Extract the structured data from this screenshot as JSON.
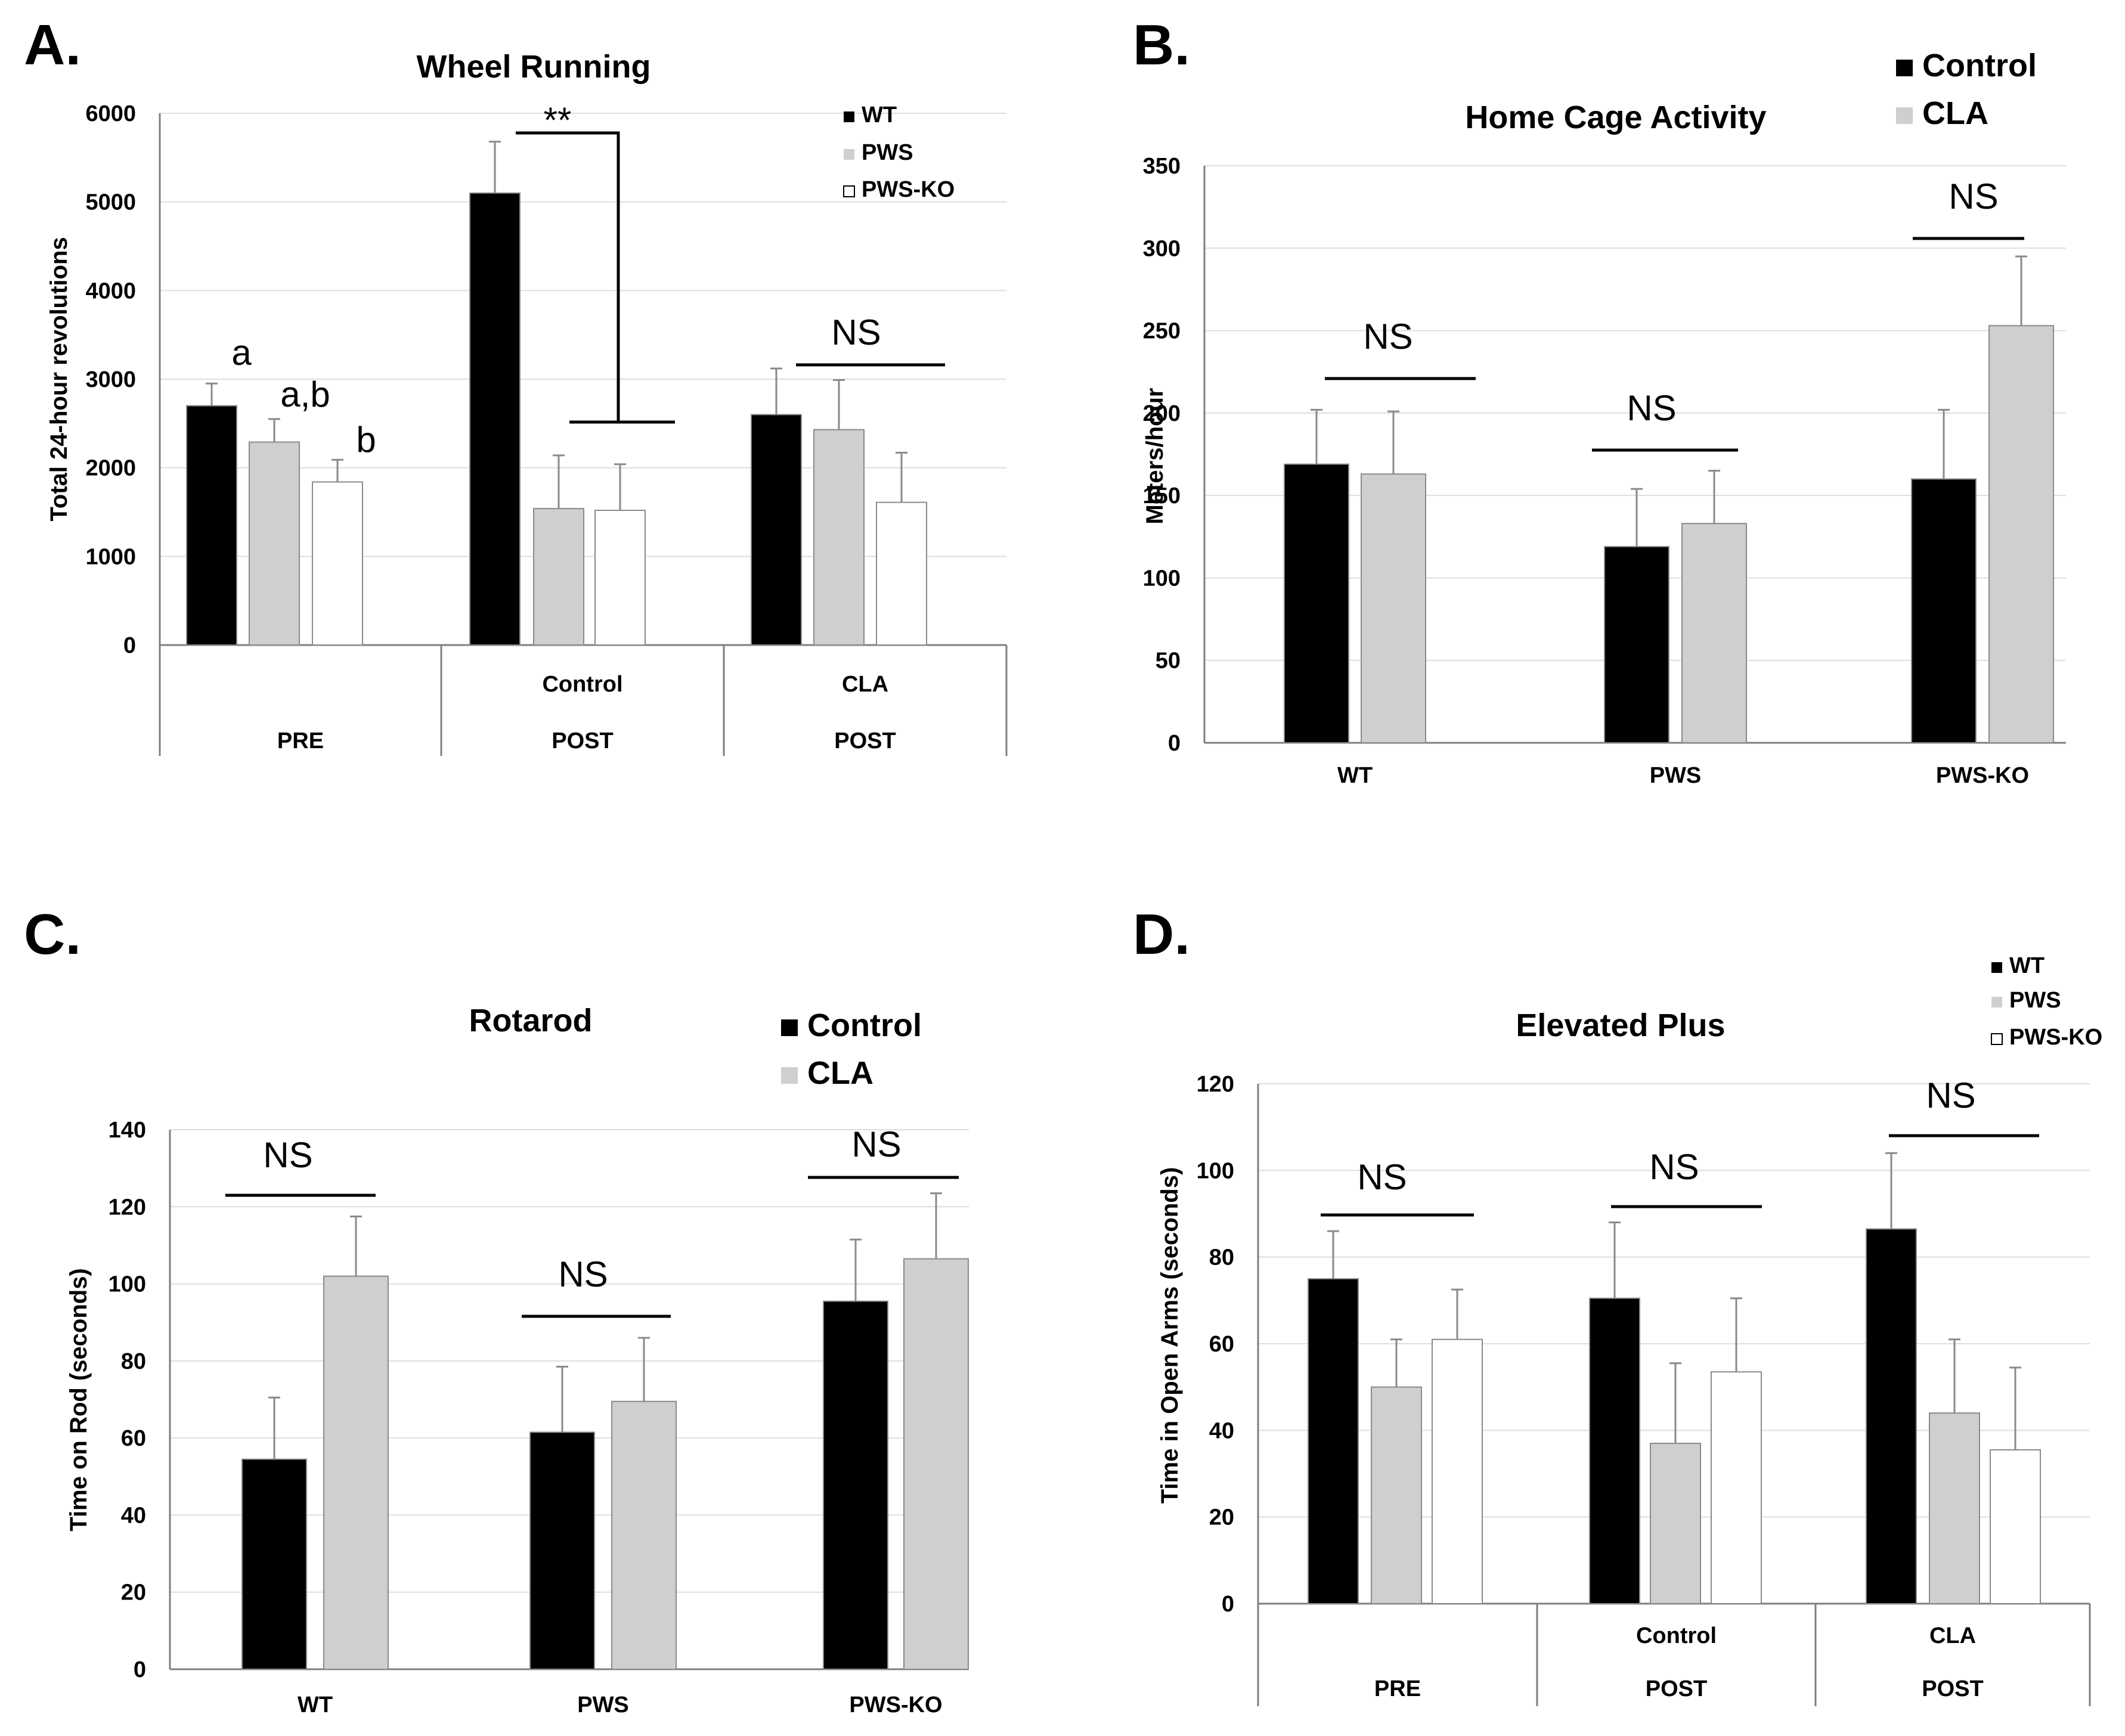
{
  "chart_data": [
    {
      "panel": "A.",
      "type": "bar",
      "title": "Wheel Running",
      "ylabel": "Total 24-hour revolutions",
      "xlabel": "",
      "ylim": [
        0,
        6000
      ],
      "yticks": [
        0,
        1000,
        2000,
        3000,
        4000,
        5000,
        6000
      ],
      "grid": true,
      "legend_position": "top-right",
      "groups": [
        {
          "top": "",
          "bottom": "PRE"
        },
        {
          "top": "Control",
          "bottom": "POST"
        },
        {
          "top": "CLA",
          "bottom": "POST"
        }
      ],
      "series": [
        {
          "name": "WT",
          "color": "#000000",
          "values": [
            2700,
            5100,
            2600
          ],
          "errors": [
            250,
            580,
            520
          ]
        },
        {
          "name": "PWS",
          "color": "#d0cece",
          "values": [
            2290,
            1540,
            2430
          ],
          "errors": [
            260,
            600,
            560
          ]
        },
        {
          "name": "PWS-KO",
          "color": "#ffffff",
          "values": [
            1840,
            1520,
            1610
          ],
          "errors": [
            250,
            520,
            560
          ]
        }
      ],
      "annotations": [
        "a",
        "a,b",
        "b",
        "**",
        "NS"
      ]
    },
    {
      "panel": "B.",
      "type": "bar",
      "title": "Home Cage Activity",
      "ylabel": "Meters/hour",
      "xlabel": "",
      "ylim": [
        0,
        350
      ],
      "yticks": [
        0,
        50,
        100,
        150,
        200,
        250,
        300,
        350
      ],
      "grid": true,
      "legend_position": "top-right",
      "categories": [
        "WT",
        "PWS",
        "PWS-KO"
      ],
      "series": [
        {
          "name": "Control",
          "color": "#000000",
          "values": [
            169,
            119,
            160
          ],
          "errors": [
            33,
            35,
            42
          ]
        },
        {
          "name": "CLA",
          "color": "#d0cece",
          "values": [
            163,
            133,
            253
          ],
          "errors": [
            38,
            32,
            42
          ]
        }
      ],
      "annotations": [
        "NS",
        "NS",
        "NS"
      ]
    },
    {
      "panel": "C.",
      "type": "bar",
      "title": "Rotarod",
      "ylabel": "Time on Rod (seconds)",
      "xlabel": "",
      "ylim": [
        0,
        140
      ],
      "yticks": [
        0,
        20,
        40,
        60,
        80,
        100,
        120,
        140
      ],
      "grid": true,
      "legend_position": "top-right",
      "categories": [
        "WT",
        "PWS",
        "PWS-KO"
      ],
      "series": [
        {
          "name": "Control",
          "color": "#000000",
          "values": [
            54.5,
            61.5,
            95.5
          ],
          "errors": [
            16,
            17,
            16
          ]
        },
        {
          "name": "CLA",
          "color": "#d0cece",
          "values": [
            102,
            69.5,
            106.5
          ],
          "errors": [
            15.5,
            16.5,
            17
          ]
        }
      ],
      "annotations": [
        "NS",
        "NS",
        "NS"
      ]
    },
    {
      "panel": "D.",
      "type": "bar",
      "title": "Elevated Plus",
      "ylabel": "Time in Open Arms (seconds)",
      "xlabel": "",
      "ylim": [
        0,
        120
      ],
      "yticks": [
        0,
        20,
        40,
        60,
        80,
        100,
        120
      ],
      "grid": true,
      "legend_position": "top-right",
      "groups": [
        {
          "top": "",
          "bottom": "PRE"
        },
        {
          "top": "Control",
          "bottom": "POST"
        },
        {
          "top": "CLA",
          "bottom": "POST"
        }
      ],
      "series": [
        {
          "name": "WT",
          "color": "#000000",
          "values": [
            75,
            70.5,
            86.5
          ],
          "errors": [
            11,
            17.5,
            17.5
          ]
        },
        {
          "name": "PWS",
          "color": "#d0cece",
          "values": [
            50,
            37,
            44
          ],
          "errors": [
            11,
            18.5,
            17
          ]
        },
        {
          "name": "PWS-KO",
          "color": "#ffffff",
          "values": [
            61,
            53.5,
            35.5
          ],
          "errors": [
            11.5,
            17,
            19
          ]
        }
      ],
      "annotations": [
        "NS",
        "NS",
        "NS"
      ]
    }
  ]
}
